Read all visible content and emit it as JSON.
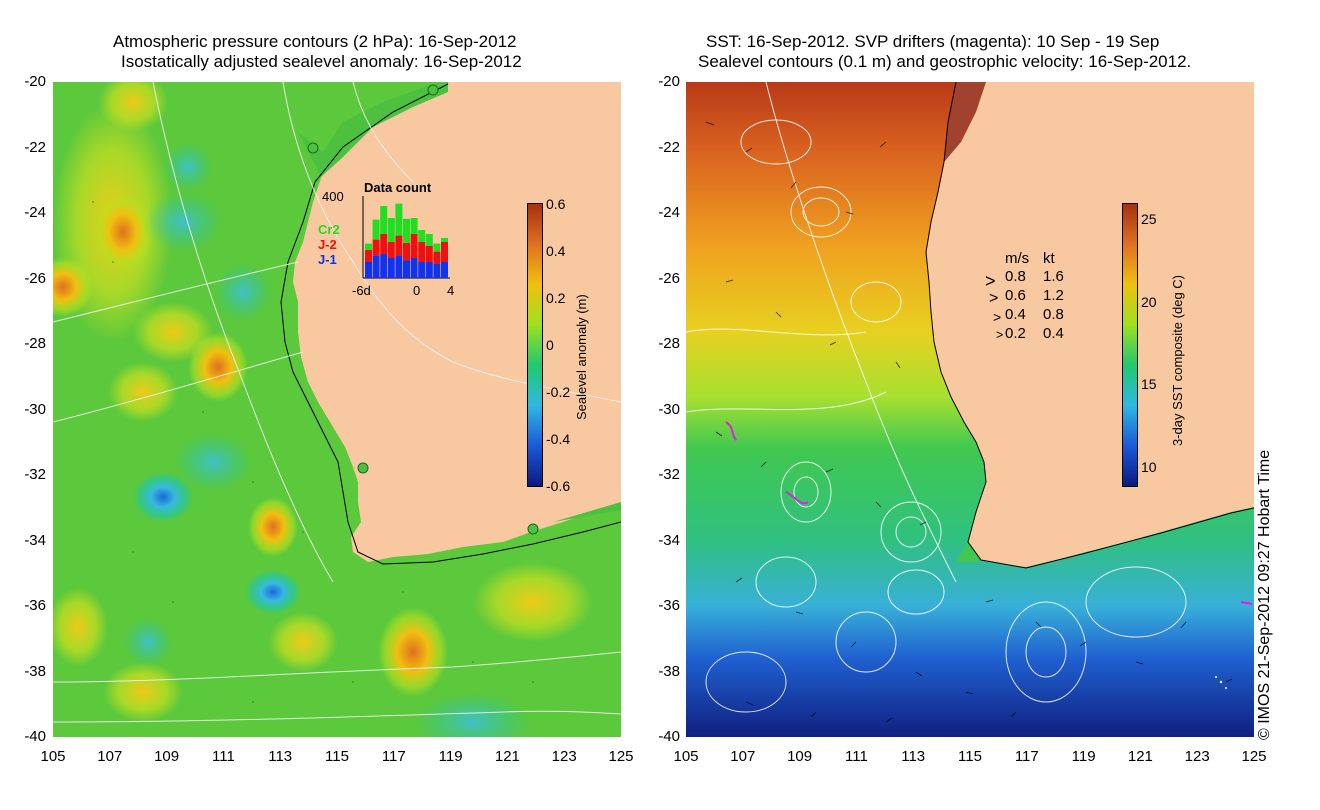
{
  "left_panel": {
    "title_line1": "Atmospheric pressure contours (2 hPa): 16-Sep-2012",
    "title_line2": "Isostatically adjusted sealevel anomaly: 16-Sep-2012",
    "colorbar": {
      "label": "Sealevel anomaly (m)",
      "ticks": [
        "0.6",
        "0.4",
        "0.2",
        "0",
        "-0.2",
        "-0.4",
        "-0.6"
      ],
      "range": [
        -0.6,
        0.6
      ],
      "colors": [
        "#0a1a80",
        "#1a5ad8",
        "#30b8e0",
        "#22c870",
        "#9ee020",
        "#f0c010",
        "#e07020",
        "#a83010"
      ]
    },
    "data_count": {
      "title": "Data count",
      "ymax_label": "400",
      "legend": [
        {
          "label": "Cr2",
          "color": "#22dd22"
        },
        {
          "label": "J-2",
          "color": "#ee1111"
        },
        {
          "label": "J-1",
          "color": "#1133ee"
        }
      ],
      "x_labels": [
        "-6d",
        "0",
        "4"
      ],
      "bars_j1": [
        0.2,
        0.28,
        0.3,
        0.25,
        0.28,
        0.22,
        0.25,
        0.2,
        0.2,
        0.18,
        0.2
      ],
      "bars_j2": [
        0.15,
        0.2,
        0.25,
        0.2,
        0.25,
        0.22,
        0.3,
        0.25,
        0.2,
        0.15,
        0.25
      ],
      "bars_cr2": [
        0.08,
        0.25,
        0.35,
        0.3,
        0.4,
        0.3,
        0.2,
        0.15,
        0.15,
        0.1,
        0.05
      ]
    }
  },
  "right_panel": {
    "title_line1": "SST: 16-Sep-2012. SVP drifters (magenta): 10 Sep - 19 Sep",
    "title_line2": "Sealevel contours (0.1 m) and geostrophic velocity: 16-Sep-2012.",
    "colorbar": {
      "label": "3-day SST composite (deg C)",
      "ticks": [
        "25",
        "20",
        "15",
        "10"
      ],
      "range": [
        9,
        26
      ],
      "colors": [
        "#0a1a80",
        "#1a5ad8",
        "#30b8e0",
        "#22c870",
        "#9ee020",
        "#f0c010",
        "#e07020",
        "#a83010"
      ]
    },
    "velocity_legend": {
      "header_ms": "m/s",
      "header_kt": "kt",
      "rows": [
        {
          "ms": "0.8",
          "kt": "1.6"
        },
        {
          "ms": "0.6",
          "kt": "1.2"
        },
        {
          "ms": "0.4",
          "kt": "0.8"
        },
        {
          "ms": "0.2",
          "kt": "0.4"
        }
      ]
    }
  },
  "axes": {
    "latitudes": [
      "-20",
      "-22",
      "-24",
      "-26",
      "-28",
      "-30",
      "-32",
      "-34",
      "-36",
      "-38",
      "-40"
    ],
    "longitudes": [
      "105",
      "107",
      "109",
      "111",
      "113",
      "115",
      "117",
      "119",
      "121",
      "123",
      "125"
    ]
  },
  "credit": "© IMOS 21-Sep-2012 09:27 Hobart Time",
  "colors": {
    "land": "#f8c8a0",
    "coast_shelf_green": "#4ec040"
  }
}
